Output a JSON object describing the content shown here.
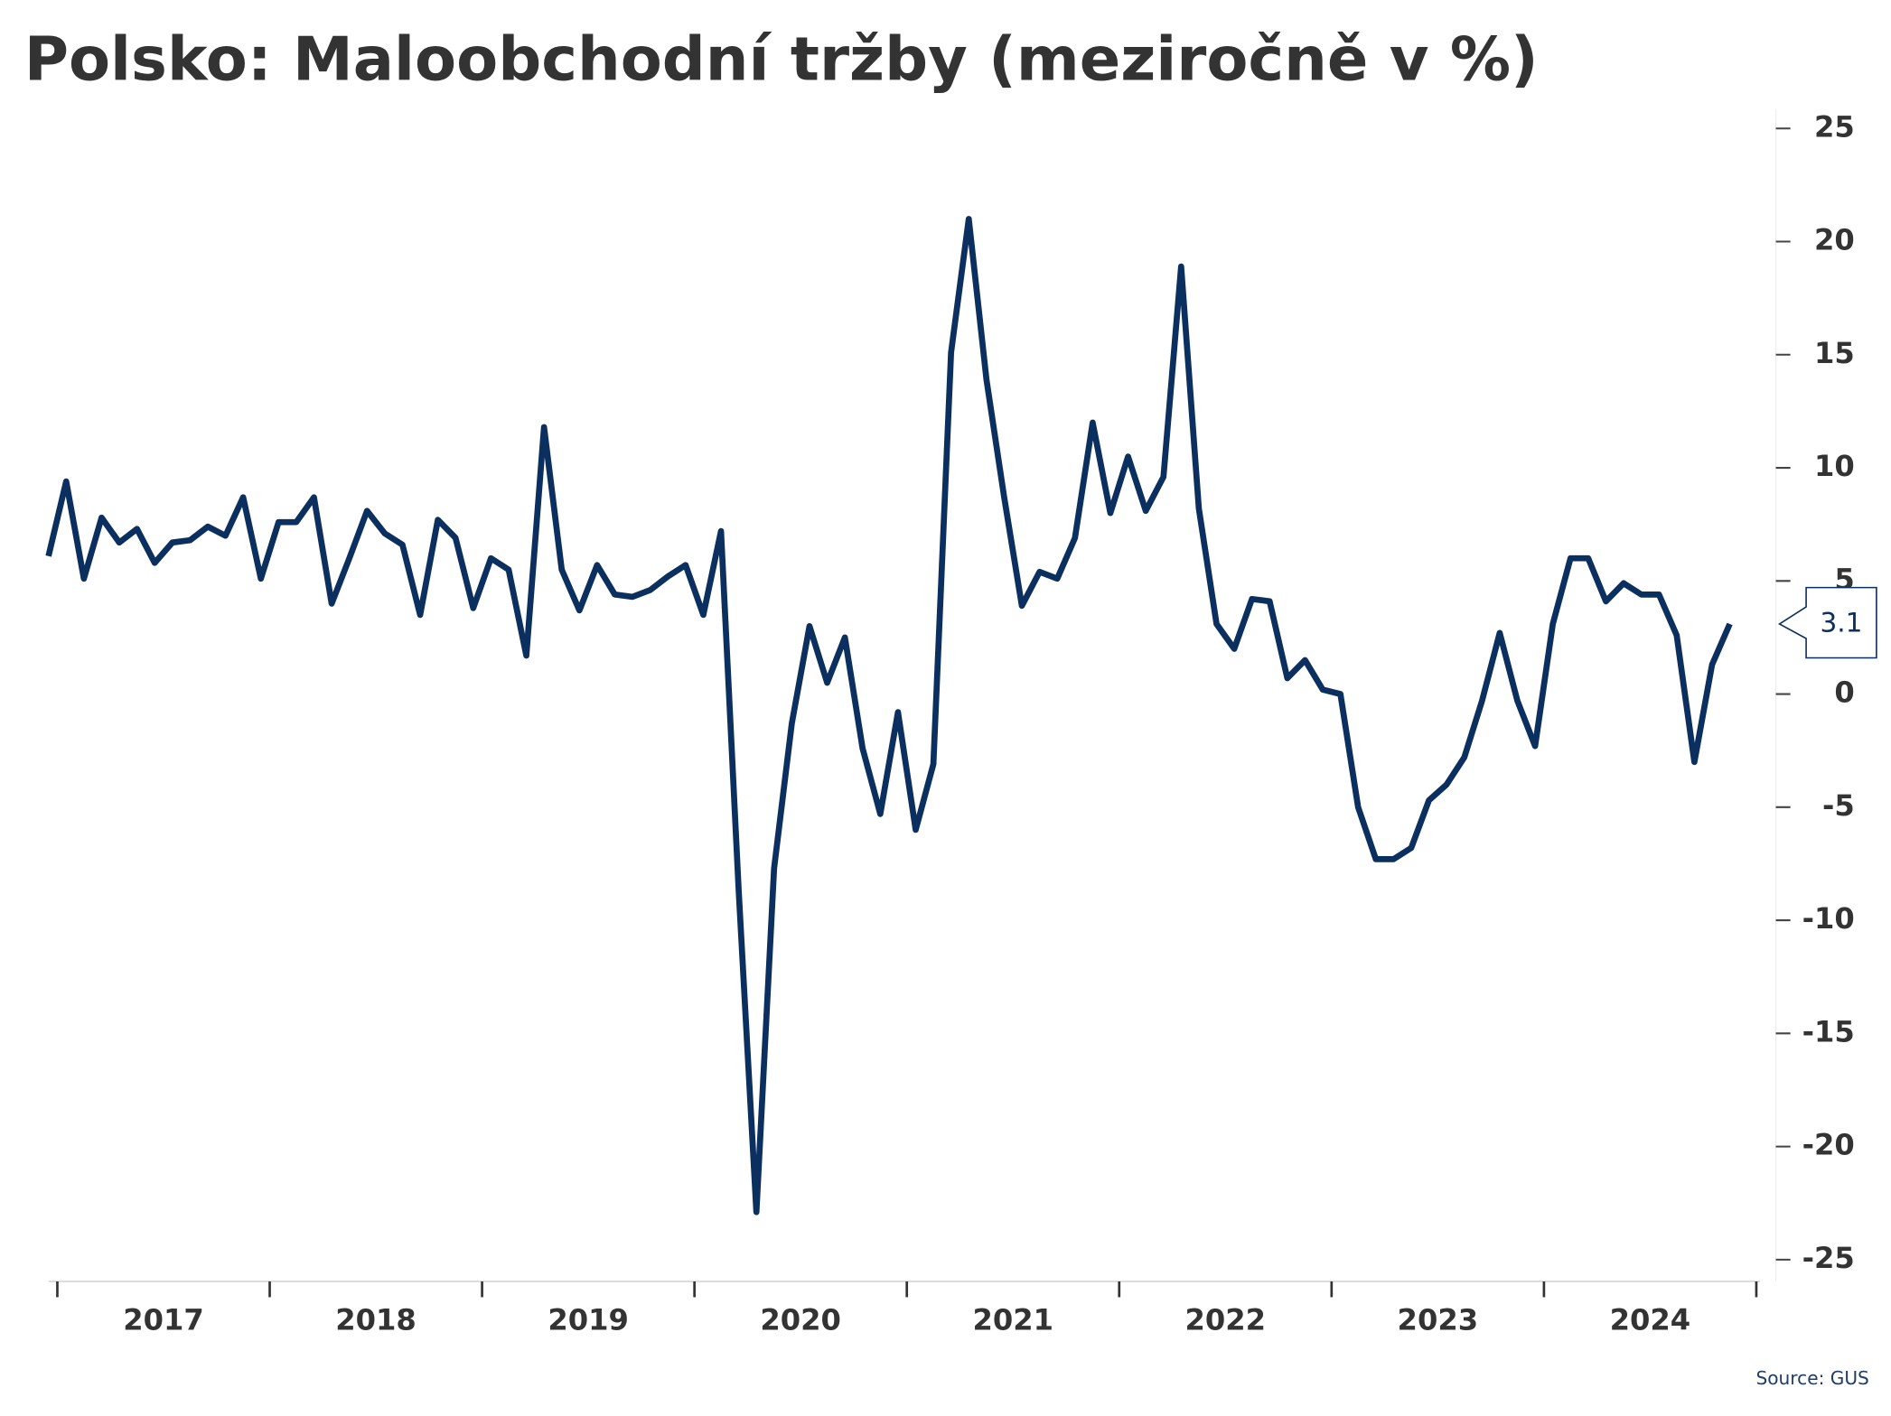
{
  "chart_data": {
    "type": "line",
    "title": "Polsko: Maloobchodní tržby (meziročně v %)",
    "source": "Source: GUS",
    "year_labels": [
      "2017",
      "2018",
      "2019",
      "2020",
      "2021",
      "2022",
      "2023",
      "2024"
    ],
    "series": [
      {
        "color": "#0b2f5e",
        "values": [
          6.1,
          9.4,
          5.1,
          7.8,
          6.7,
          7.3,
          5.8,
          6.7,
          6.8,
          7.4,
          7.0,
          8.7,
          5.1,
          7.6,
          7.6,
          8.7,
          4.0,
          6.0,
          8.1,
          7.1,
          6.6,
          3.5,
          7.7,
          6.9,
          3.8,
          6.0,
          5.5,
          1.7,
          11.8,
          5.5,
          3.7,
          5.7,
          4.4,
          4.3,
          4.6,
          5.2,
          5.7,
          3.5,
          7.2,
          -8.7,
          -22.9,
          -7.7,
          -1.3,
          3.0,
          0.5,
          2.5,
          -2.4,
          -5.3,
          -0.8,
          -6.0,
          -3.1,
          15.1,
          21.0,
          13.9,
          8.7,
          3.9,
          5.4,
          5.1,
          6.9,
          12.0,
          8.0,
          10.5,
          8.1,
          9.6,
          18.9,
          8.2,
          3.1,
          2.0,
          4.2,
          4.1,
          0.7,
          1.5,
          0.2,
          0.0,
          -5.0,
          -7.3,
          -7.3,
          -6.8,
          -4.7,
          -4.0,
          -2.8,
          -0.3,
          2.7,
          -0.3,
          -2.3,
          3.1,
          6.0,
          6.0,
          4.1,
          4.9,
          4.4,
          4.4,
          2.6,
          -3.0,
          1.3,
          3.1
        ]
      }
    ],
    "ylim": [
      -25,
      25
    ],
    "yticks": [
      -25,
      -20,
      -15,
      -10,
      -5,
      0,
      5,
      10,
      15,
      20,
      25
    ],
    "y_axis_side": "right"
  }
}
